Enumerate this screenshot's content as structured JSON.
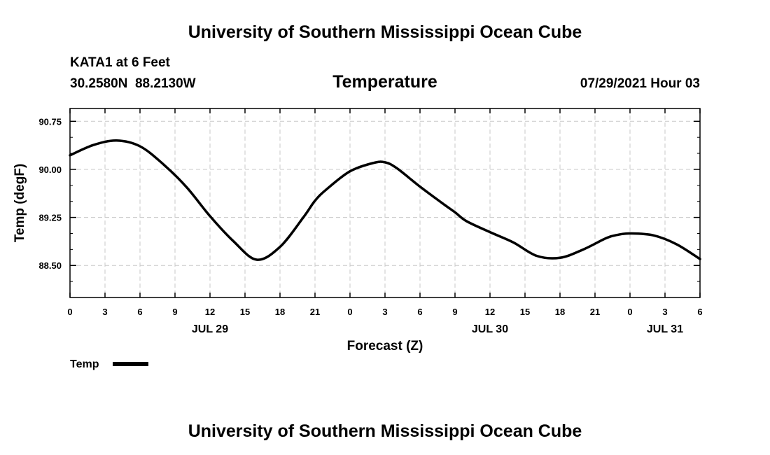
{
  "header": {
    "title_top": "University of Southern Mississippi Ocean Cube",
    "station": "KATA1 at 6 Feet",
    "coords": "30.2580N  88.2130W",
    "variable": "Temperature",
    "timestamp": "07/29/2021 Hour 03",
    "title_bottom": "University of Southern Mississippi Ocean Cube"
  },
  "legend": {
    "label": "Temp"
  },
  "colors": {
    "line": "#000000",
    "grid": "#c8c8c8",
    "background": "#ffffff"
  },
  "chart_data": {
    "type": "line",
    "title": "Temperature",
    "xlabel": "Forecast (Z)",
    "ylabel": "Temp (degF)",
    "xlim": [
      0,
      54
    ],
    "ylim": [
      88.0,
      90.95
    ],
    "x_ticks": [
      0,
      3,
      6,
      9,
      12,
      15,
      18,
      21,
      24,
      27,
      30,
      33,
      36,
      39,
      42,
      45,
      48,
      51,
      54
    ],
    "x_tick_labels": [
      "0",
      "3",
      "6",
      "9",
      "12",
      "15",
      "18",
      "21",
      "0",
      "3",
      "6",
      "9",
      "12",
      "15",
      "18",
      "21",
      "0",
      "3",
      "6"
    ],
    "date_labels": [
      {
        "x": 12,
        "text": "JUL 29"
      },
      {
        "x": 36,
        "text": "JUL 30"
      },
      {
        "x": 51,
        "text": "JUL 31"
      }
    ],
    "y_ticks": [
      88.5,
      89.25,
      90.0,
      90.75
    ],
    "y_tick_labels": [
      "88.50",
      "89.25",
      "90.00",
      "90.75"
    ],
    "grid": true,
    "series": [
      {
        "name": "Temp",
        "x": [
          0,
          2,
          4,
          6,
          8,
          10,
          12,
          14,
          16,
          18,
          20,
          21,
          22,
          24,
          26,
          27,
          28,
          30,
          32,
          33,
          34,
          36,
          38,
          40,
          42,
          44,
          46,
          47,
          48,
          50,
          52,
          54
        ],
        "y": [
          90.22,
          90.38,
          90.45,
          90.36,
          90.08,
          89.72,
          89.27,
          88.88,
          88.59,
          88.79,
          89.25,
          89.51,
          89.69,
          89.97,
          90.1,
          90.11,
          90.02,
          89.73,
          89.46,
          89.33,
          89.19,
          89.02,
          88.86,
          88.65,
          88.62,
          88.75,
          88.93,
          88.98,
          89.0,
          88.97,
          88.83,
          88.6
        ]
      }
    ]
  }
}
